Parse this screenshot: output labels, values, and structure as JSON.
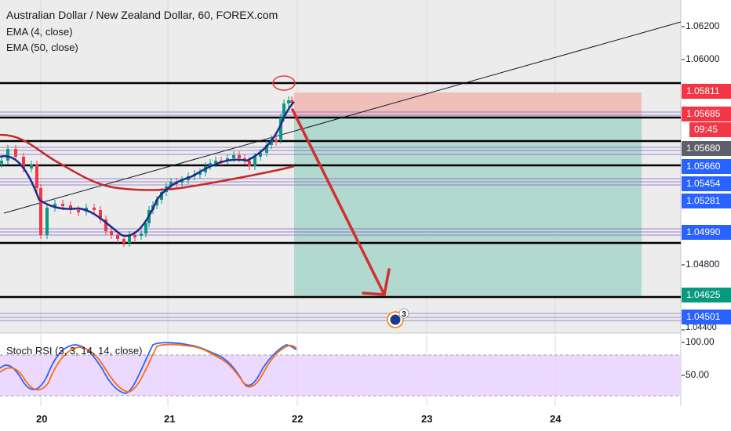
{
  "header": {
    "title": "Australian Dollar / New Zealand Dollar, 60, FOREX.com",
    "ema_fast": "EMA (4, close)",
    "ema_slow": "EMA (50, close)"
  },
  "oscillator": {
    "label": "Stoch RSI (3, 3, 14, 14, close)",
    "scale": [
      "100.00",
      "50.00"
    ]
  },
  "price_scale": {
    "ticks": [
      "1.06200",
      "1.06000",
      "1.04800",
      "1.04400"
    ],
    "tags": [
      {
        "id": "tag-1",
        "text": "1.05811",
        "color": "#f23645"
      },
      {
        "id": "tag-2",
        "text": "1.05685",
        "color": "#f23645"
      },
      {
        "id": "tag-3",
        "text": "09:45",
        "color": "#f23645"
      },
      {
        "id": "tag-4",
        "text": "1.05680",
        "color": "#5d606b"
      },
      {
        "id": "tag-5",
        "text": "1.05660",
        "color": "#2962ff"
      },
      {
        "id": "tag-6",
        "text": "1.05454",
        "color": "#2962ff"
      },
      {
        "id": "tag-7",
        "text": "1.05281",
        "color": "#2962ff"
      },
      {
        "id": "tag-8",
        "text": "1.04990",
        "color": "#2962ff"
      },
      {
        "id": "tag-9",
        "text": "1.04625",
        "color": "#089981"
      },
      {
        "id": "tag-10",
        "text": "1.04501",
        "color": "#2962ff"
      }
    ],
    "partial_label": "1."
  },
  "time_axis": [
    "20",
    "21",
    "22",
    "23",
    "24"
  ],
  "event": {
    "count": "3"
  },
  "colors": {
    "up": "#089981",
    "down": "#f23645",
    "ema_fast": "#1e2a8c",
    "ema_slow": "#c62828",
    "stop_zone": "#f3b0ab",
    "target_zone": "#8fcfc0",
    "stoch_k": "#2962ff",
    "stoch_d": "#ff6d00",
    "stoch_band": "#e1c4ff"
  }
}
